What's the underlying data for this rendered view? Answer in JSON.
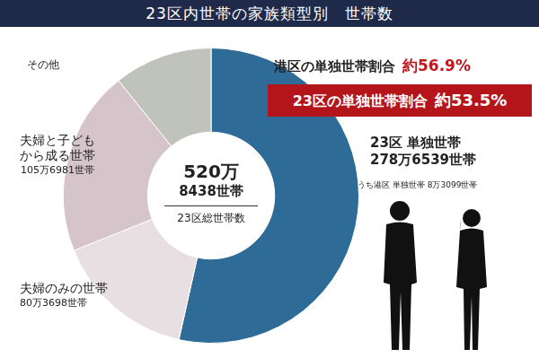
{
  "chart_data": {
    "type": "doughnut",
    "title": "23区内世帯の家族類型別　世帯数",
    "categories": [
      "23区 単独世帯",
      "夫婦のみの世帯",
      "夫婦と子ども\nから成る世帯",
      "その他"
    ],
    "values": [
      2786539,
      803698,
      1056981,
      561220
    ],
    "value_labels": [
      "278万6539世帯",
      "80万3698世帯",
      "105万6981世帯",
      null
    ],
    "colors": [
      "#2f6b97",
      "#e7dfe2",
      "#d6c4cb",
      "#bfc3bc"
    ],
    "data_labels": true,
    "center": {
      "lines": [
        "520万",
        "8438世帯"
      ],
      "caption": "23区総世帯数"
    },
    "annotations": {
      "minato_ratio": {
        "text": "港区の単独世帯割合",
        "label": "約56.9%"
      },
      "ward_ratio": {
        "text": "23区の単独世帯割合",
        "label": "約53.5%"
      },
      "minato_single": "うち港区 単独世帯 8万3099世帯"
    }
  }
}
